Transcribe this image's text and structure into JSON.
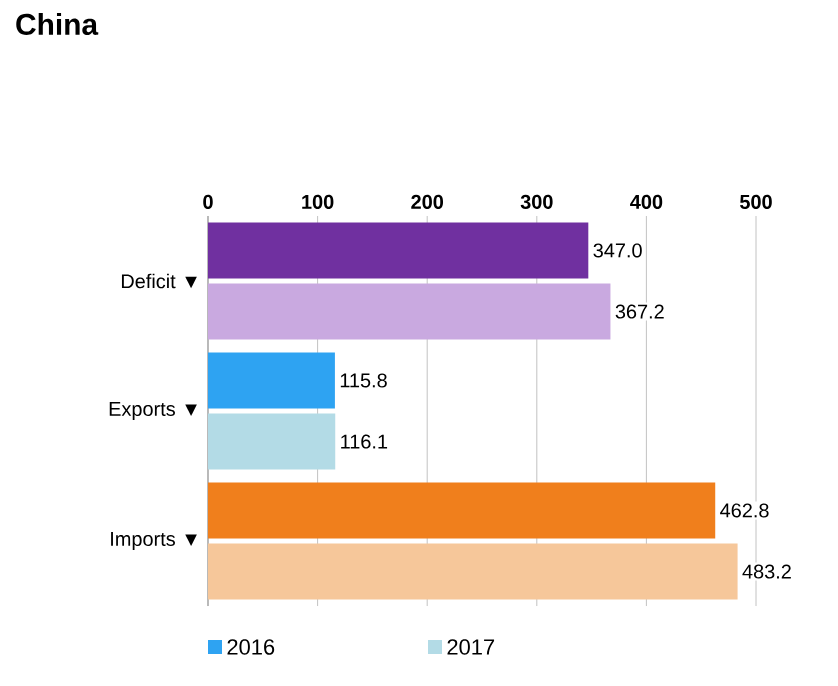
{
  "chart_data": {
    "type": "bar",
    "orientation": "horizontal",
    "title": "China",
    "categories": [
      "Deficit ▼",
      "Exports ▼",
      "Imports ▼"
    ],
    "series": [
      {
        "name": "2016",
        "color": "#2ea3f2",
        "colors": [
          "#7030a0",
          "#2ea3f2",
          "#f07f1c"
        ],
        "values": [
          347.0,
          115.8,
          462.8
        ],
        "value_labels": [
          "347.0",
          "115.8",
          "462.8"
        ]
      },
      {
        "name": "2017",
        "color": "#b3dbe6",
        "colors": [
          "#c9a9e0",
          "#b3dbe6",
          "#f6c79a"
        ],
        "values": [
          367.2,
          116.1,
          483.2
        ],
        "value_labels": [
          "367.2",
          "116.1",
          "483.2"
        ]
      }
    ],
    "xlim": [
      0,
      500
    ],
    "xticks": [
      0,
      100,
      200,
      300,
      400,
      500
    ],
    "grid": "x",
    "legend": "bottom"
  }
}
